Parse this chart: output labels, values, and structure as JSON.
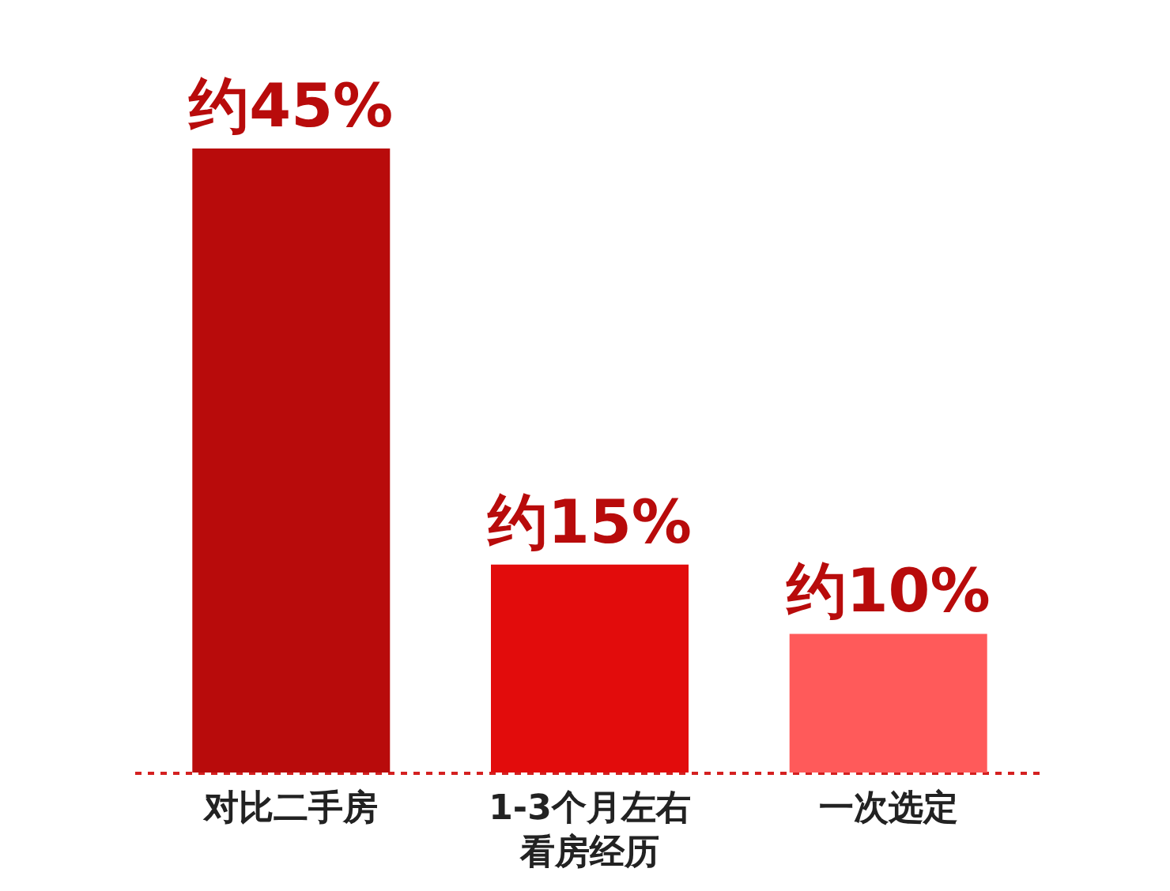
{
  "chart_data": {
    "type": "bar",
    "categories": [
      "对比二手房",
      "1-3个月左右看房经历",
      "一次选定"
    ],
    "values": [
      45,
      15,
      10
    ],
    "colors": [
      "#b80b0b",
      "#e20c0c",
      "#ff5a5a"
    ],
    "value_labels": [
      "约45%",
      "约15%",
      "约10%"
    ],
    "tick_labels": "x",
    "grid": false,
    "legend": false
  }
}
